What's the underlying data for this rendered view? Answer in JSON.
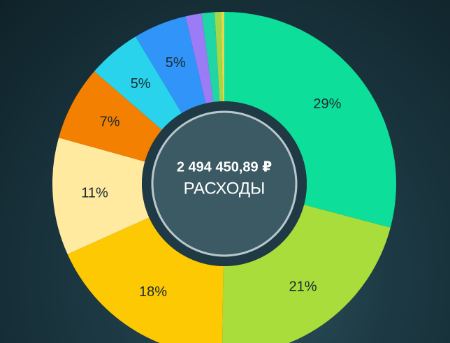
{
  "center": {
    "total": "2 494 450,89 ₽",
    "label": "РАСХОДЫ"
  },
  "chart_data": {
    "type": "pie",
    "start_angle_deg": 0,
    "direction": "clockwise",
    "slices": [
      {
        "value": 29,
        "label": "29%",
        "color": "#0ddf9a"
      },
      {
        "value": 21,
        "label": "21%",
        "color": "#a8dd3c"
      },
      {
        "value": 18,
        "label": "18%",
        "color": "#fdc902"
      },
      {
        "value": 11,
        "label": "11%",
        "color": "#ffeaa0"
      },
      {
        "value": 7,
        "label": "7%",
        "color": "#f38000"
      },
      {
        "value": 5,
        "label": "5%",
        "color": "#29d3ec"
      },
      {
        "value": 5,
        "label": "5%",
        "color": "#3194f8"
      },
      {
        "value": 1.5,
        "label": "",
        "color": "#9c7cf6"
      },
      {
        "value": 1.2,
        "label": "",
        "color": "#1fd6a6"
      },
      {
        "value": 0.6,
        "label": "",
        "color": "#9fd84a"
      },
      {
        "value": 0.3,
        "label": "",
        "color": "#e6d84a"
      }
    ]
  }
}
